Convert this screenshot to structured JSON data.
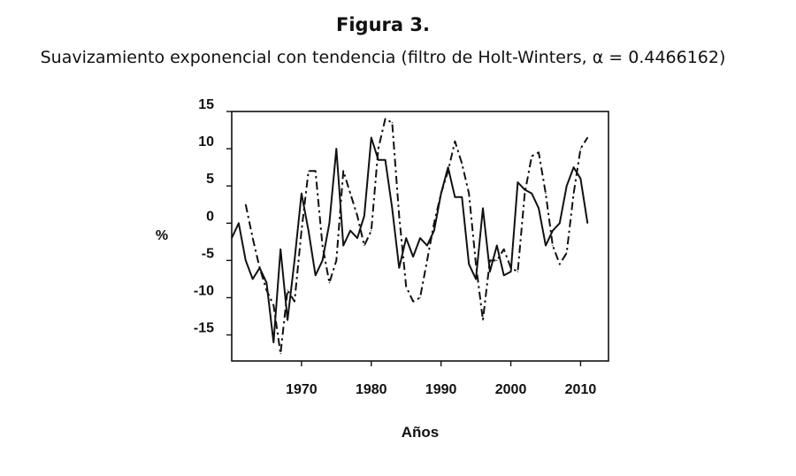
{
  "figure": {
    "title": "Figura 3.",
    "subtitle": "Suavizamiento exponencial con tendencia (filtro de Holt-Winters, α = 0.4466162)"
  },
  "chart_data": {
    "type": "line",
    "title": "Figura 3.",
    "subtitle": "Suavizamiento exponencial con tendencia (filtro de Holt-Winters, α = 0.4466162)",
    "xlabel": "Años",
    "ylabel": "%",
    "xlim": [
      1960,
      2014
    ],
    "ylim": [
      -18.5,
      15
    ],
    "xticks": [
      1970,
      1980,
      1990,
      2000,
      2010
    ],
    "yticks": [
      15,
      10,
      5,
      0,
      -5,
      -10,
      -15
    ],
    "grid": false,
    "legend": "none",
    "series": [
      {
        "style": "solid",
        "x": [
          1960,
          1961,
          1962,
          1963,
          1964,
          1965,
          1966,
          1967,
          1968,
          1969,
          1970,
          1971,
          1972,
          1973,
          1974,
          1975,
          1976,
          1977,
          1978,
          1979,
          1980,
          1981,
          1982,
          1983,
          1984,
          1985,
          1986,
          1987,
          1988,
          1989,
          1990,
          1991,
          1992,
          1993,
          1994,
          1995,
          1996,
          1997,
          1998,
          1999,
          2000,
          2001,
          2002,
          2003,
          2004,
          2005,
          2006,
          2007,
          2008,
          2009,
          2010,
          2011
        ],
        "y": [
          -2,
          0,
          -5,
          -7.5,
          -6,
          -8,
          -16,
          -3.5,
          -13,
          -5,
          4,
          -1,
          -7,
          -5,
          0,
          10,
          -3,
          -1,
          -2,
          1,
          11.5,
          8.5,
          8.5,
          2,
          -6,
          -2,
          -4.5,
          -2,
          -3,
          -1,
          4,
          7.5,
          3.5,
          3.5,
          -5.5,
          -7.5,
          2,
          -6.5,
          -3,
          -7,
          -6.5,
          5.5,
          4.5,
          4,
          2,
          -3,
          -1,
          0,
          5,
          7.5,
          6,
          0
        ]
      },
      {
        "style": "dash-dot",
        "x": [
          1962,
          1963,
          1964,
          1965,
          1966,
          1967,
          1968,
          1969,
          1970,
          1971,
          1972,
          1973,
          1974,
          1975,
          1976,
          1977,
          1978,
          1979,
          1980,
          1981,
          1982,
          1983,
          1984,
          1985,
          1986,
          1987,
          1988,
          1989,
          1990,
          1991,
          1992,
          1993,
          1994,
          1995,
          1996,
          1997,
          1998,
          1999,
          2000,
          2001,
          2002,
          2003,
          2004,
          2005,
          2006,
          2007,
          2008,
          2009,
          2010,
          2011
        ],
        "y": [
          2.5,
          -2,
          -6,
          -9,
          -11,
          -17.5,
          -9,
          -10.5,
          -1,
          7,
          7,
          -3,
          -8,
          -5,
          7,
          4,
          1,
          -3,
          -1,
          10,
          14,
          13.5,
          1,
          -8.5,
          -10.5,
          -10,
          -5,
          0,
          4,
          7,
          11,
          8,
          4,
          -5.5,
          -13,
          -5,
          -5,
          -3.5,
          -6,
          -6.5,
          4,
          9,
          9.5,
          4,
          -3,
          -5.5,
          -4,
          4,
          10,
          11.5
        ]
      }
    ]
  }
}
